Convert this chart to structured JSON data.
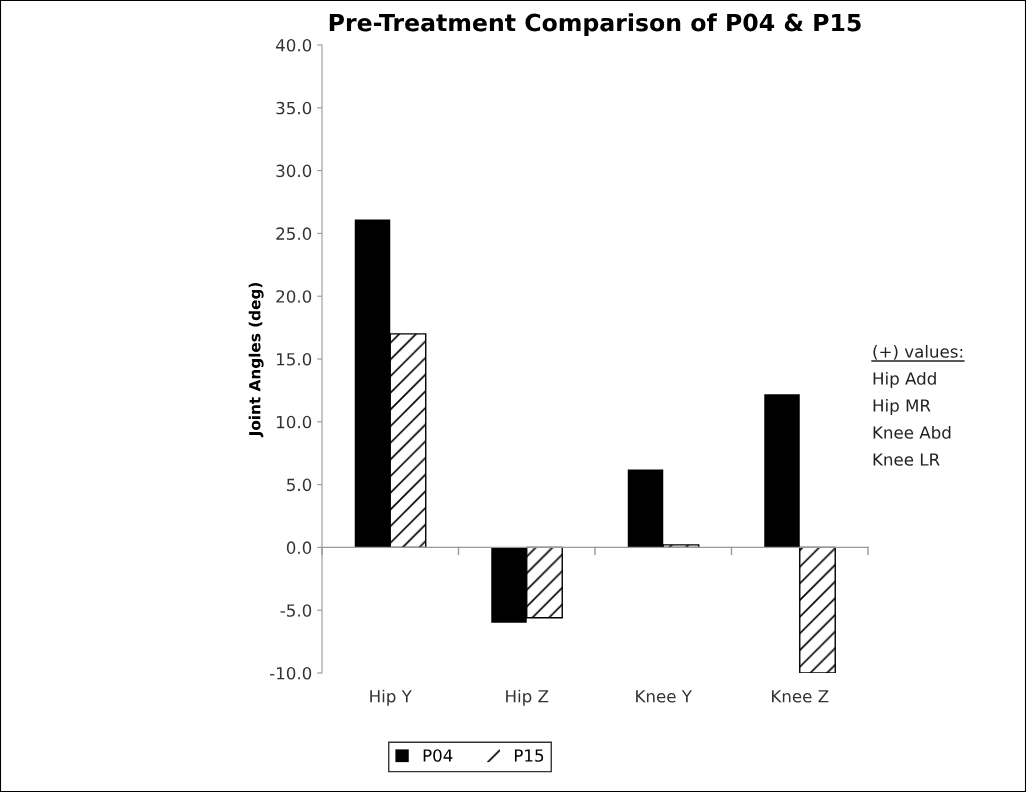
{
  "chart_data": {
    "type": "bar",
    "title": "Pre-Treatment Comparison of P04 & P15",
    "ylabel": "Joint Angles (deg)",
    "categories": [
      "Hip Y",
      "Hip Z",
      "Knee Y",
      "Knee Z"
    ],
    "series": [
      {
        "name": "P04",
        "color": "#000000",
        "values": [
          26.1,
          -6.0,
          6.2,
          12.2
        ]
      },
      {
        "name": "P15",
        "color": "#ffffff",
        "values": [
          17.0,
          -5.6,
          0.2,
          -10.0
        ]
      }
    ],
    "ylim": [
      -10,
      40
    ],
    "yticks": [
      {
        "value": -10,
        "label": "-10.0"
      },
      {
        "value": -5,
        "label": "-5.0"
      },
      {
        "value": 0,
        "label": "0.0"
      },
      {
        "value": 5,
        "label": "5.0"
      },
      {
        "value": 10,
        "label": "10.0"
      },
      {
        "value": 15,
        "label": "15.0"
      },
      {
        "value": 20,
        "label": "20.0"
      },
      {
        "value": 25,
        "label": "25.0"
      },
      {
        "value": 30,
        "label": "30.0"
      },
      {
        "value": 35,
        "label": "35.0"
      },
      {
        "value": 40,
        "label": "40.0"
      }
    ],
    "annotations": [
      "(+) values:",
      "Hip Add",
      "Hip MR",
      "Knee Abd",
      "Knee LR"
    ],
    "legend": "bottom"
  }
}
